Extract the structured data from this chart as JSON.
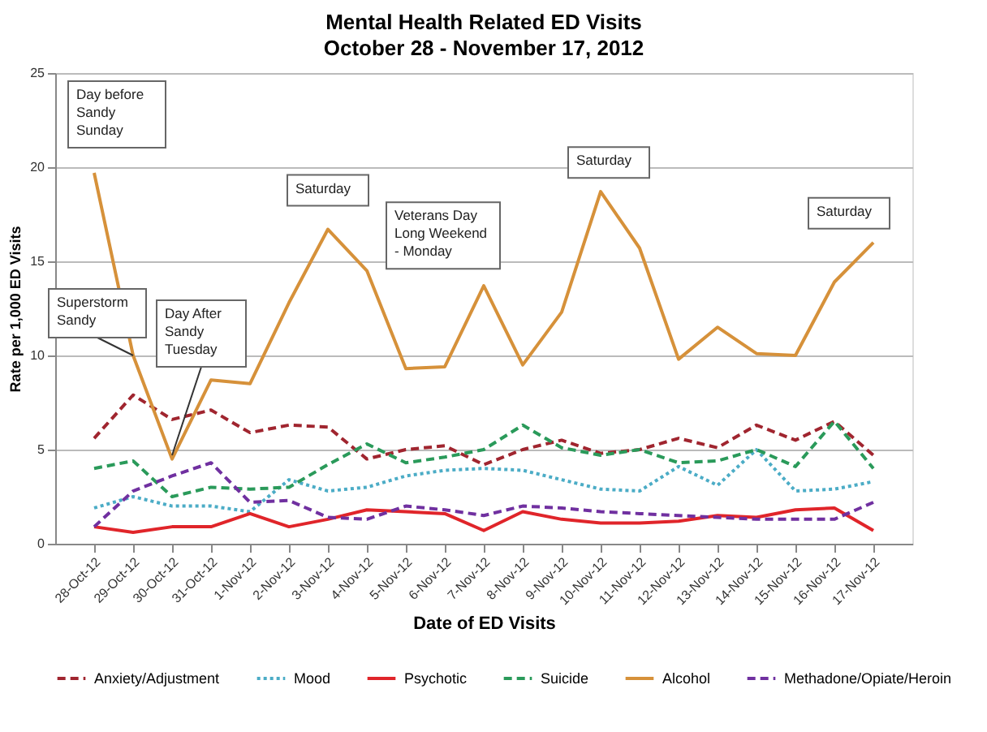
{
  "chart_data": {
    "type": "line",
    "title": "Mental Health Related ED Visits",
    "subtitle": "October 28 - November 17, 2012",
    "xlabel": "Date of ED Visits",
    "ylabel": "Rate per 1,000 ED Visits",
    "categories": [
      "28-Oct-12",
      "29-Oct-12",
      "30-Oct-12",
      "31-Oct-12",
      "1-Nov-12",
      "2-Nov-12",
      "3-Nov-12",
      "4-Nov-12",
      "5-Nov-12",
      "6-Nov-12",
      "7-Nov-12",
      "8-Nov-12",
      "9-Nov-12",
      "10-Nov-12",
      "11-Nov-12",
      "12-Nov-12",
      "13-Nov-12",
      "14-Nov-12",
      "15-Nov-12",
      "16-Nov-12",
      "17-Nov-12"
    ],
    "series": [
      {
        "name": "Anxiety/Adjustment",
        "color": "#a0252f",
        "line_style": "dashed",
        "values": [
          5.6,
          7.9,
          6.6,
          7.1,
          5.9,
          6.3,
          6.2,
          4.5,
          5.0,
          5.2,
          4.2,
          5.0,
          5.5,
          4.8,
          5.0,
          5.6,
          5.1,
          6.3,
          5.5,
          6.5,
          4.7
        ]
      },
      {
        "name": "Mood",
        "color": "#4bacc6",
        "line_style": "dotted",
        "values": [
          1.9,
          2.5,
          2.0,
          2.0,
          1.7,
          3.4,
          2.8,
          3.0,
          3.6,
          3.9,
          4.0,
          3.9,
          3.4,
          2.9,
          2.8,
          4.1,
          3.1,
          5.0,
          2.8,
          2.9,
          3.3
        ]
      },
      {
        "name": "Psychotic",
        "color": "#e0252a",
        "line_style": "solid",
        "values": [
          0.9,
          0.6,
          0.9,
          0.9,
          1.6,
          0.9,
          1.3,
          1.8,
          1.7,
          1.6,
          0.7,
          1.7,
          1.3,
          1.1,
          1.1,
          1.2,
          1.5,
          1.4,
          1.8,
          1.9,
          0.7
        ]
      },
      {
        "name": "Suicide",
        "color": "#2a9a5a",
        "line_style": "dashed",
        "values": [
          4.0,
          4.4,
          2.5,
          3.0,
          2.9,
          3.0,
          4.2,
          5.3,
          4.3,
          4.6,
          5.0,
          6.3,
          5.1,
          4.7,
          5.0,
          4.3,
          4.4,
          5.0,
          4.1,
          6.5,
          4.0
        ]
      },
      {
        "name": "Alcohol",
        "color": "#d6913a",
        "line_style": "solid",
        "values": [
          19.7,
          10.0,
          4.5,
          8.7,
          8.5,
          12.8,
          16.7,
          14.5,
          9.3,
          9.4,
          13.7,
          9.5,
          12.3,
          18.7,
          15.7,
          9.8,
          11.5,
          10.1,
          10.0,
          13.9,
          16.0
        ]
      },
      {
        "name": "Methadone/Opiate/Heroin",
        "color": "#7030a0",
        "line_style": "dashed",
        "values": [
          0.9,
          2.8,
          3.6,
          4.3,
          2.2,
          2.3,
          1.4,
          1.3,
          2.0,
          1.8,
          1.5,
          2.0,
          1.9,
          1.7,
          1.6,
          1.5,
          1.4,
          1.3,
          1.3,
          1.3,
          2.2
        ]
      }
    ],
    "ylim": [
      0,
      25
    ],
    "yticks": [
      0,
      5,
      10,
      15,
      20,
      25
    ],
    "grid": "y",
    "legend": "bottom",
    "marker": "none",
    "annotations": [
      {
        "text": "Day before\nSandy\nSunday",
        "x": "28-Oct-12",
        "y": 19.7
      },
      {
        "text": "Superstorm\nSandy",
        "x": "29-Oct-12",
        "y": 10.0
      },
      {
        "text": "Day After\nSandy\nTuesday",
        "x": "30-Oct-12",
        "y": 4.7
      },
      {
        "text": "Saturday",
        "x": "3-Nov-12",
        "y": 16.7
      },
      {
        "text": "Veterans Day\nLong Weekend\n- Monday",
        "x": "7-Nov-12",
        "y": 13.7
      },
      {
        "text": "Saturday",
        "x": "10-Nov-12",
        "y": 18.7
      },
      {
        "text": "Saturday",
        "x": "17-Nov-12",
        "y": 16.0
      }
    ]
  }
}
